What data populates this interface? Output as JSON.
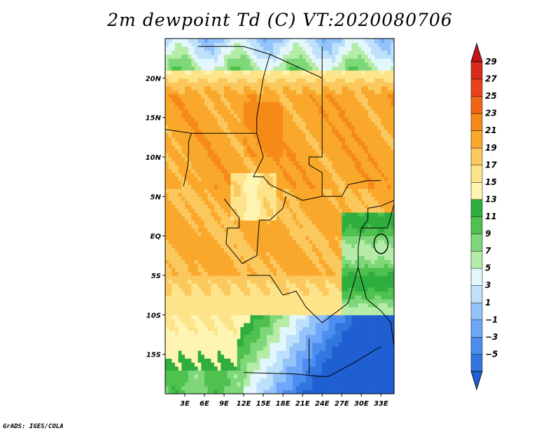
{
  "chart_data": {
    "type": "heatmap",
    "title": "2m dewpoint Td (C) VT:2020080706",
    "x_axis": {
      "range": [
        0,
        35
      ],
      "tick_values": [
        3,
        6,
        9,
        12,
        15,
        18,
        21,
        24,
        27,
        30,
        33
      ],
      "tick_labels": [
        "3E",
        "6E",
        "9E",
        "12E",
        "15E",
        "18E",
        "21E",
        "24E",
        "27E",
        "30E",
        "33E"
      ]
    },
    "y_axis": {
      "range": [
        -20,
        25
      ],
      "tick_values": [
        20,
        15,
        10,
        5,
        0,
        -5,
        -10,
        -15
      ],
      "tick_labels": [
        "20N",
        "15N",
        "10N",
        "5N",
        "EQ",
        "5S",
        "10S",
        "15S"
      ]
    },
    "colorbar": {
      "levels": [
        -5,
        -3,
        -1,
        1,
        3,
        5,
        7,
        9,
        11,
        13,
        15,
        17,
        19,
        21,
        23,
        25,
        27,
        29
      ],
      "labels": [
        "29",
        "27",
        "25",
        "23",
        "21",
        "19",
        "17",
        "15",
        "13",
        "11",
        "9",
        "7",
        "5",
        "3",
        "1",
        "−1",
        "−3",
        "−5"
      ],
      "colors": [
        "#1f5fd1",
        "#3277e0",
        "#4c8ef0",
        "#6ea7f7",
        "#94c3f9",
        "#bde0fb",
        "#e2f6fc",
        "#b5eca8",
        "#7ed87a",
        "#4fc14f",
        "#2fae3f",
        "#fff5b3",
        "#fde48a",
        "#fbc85e",
        "#f9a82c",
        "#f68a18",
        "#f06515",
        "#e8421a",
        "#d92a1a",
        "#c4121a"
      ]
    }
  },
  "footer": "GrADS: IGES/COLA"
}
